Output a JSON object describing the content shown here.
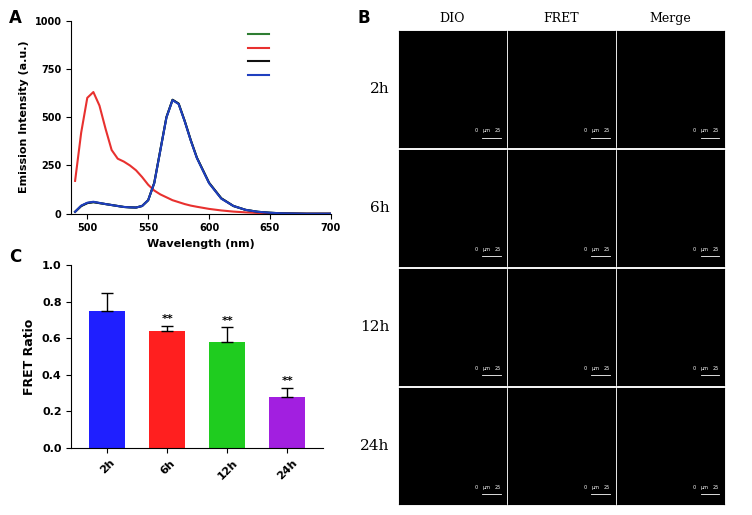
{
  "panel_labels": [
    "A",
    "B",
    "C"
  ],
  "chart_data": [
    {
      "type": "line",
      "x_label": "Wavelength (nm)",
      "y_label": "Emission Intensity (a.u.)",
      "x": [
        490,
        495,
        500,
        505,
        510,
        515,
        520,
        525,
        530,
        535,
        540,
        545,
        550,
        555,
        560,
        565,
        570,
        575,
        580,
        585,
        590,
        600,
        610,
        620,
        630,
        640,
        650,
        660,
        680,
        700
      ],
      "series": [
        {
          "color": "#2e7d32",
          "values": [
            10,
            40,
            55,
            60,
            55,
            50,
            45,
            40,
            35,
            33,
            32,
            40,
            70,
            160,
            330,
            500,
            590,
            570,
            480,
            380,
            290,
            160,
            80,
            40,
            20,
            10,
            5,
            2,
            0,
            0
          ]
        },
        {
          "color": "#e8312f",
          "values": [
            170,
            420,
            600,
            630,
            560,
            440,
            330,
            285,
            270,
            250,
            225,
            190,
            150,
            120,
            100,
            85,
            70,
            60,
            50,
            42,
            36,
            25,
            17,
            11,
            7,
            4,
            2,
            1,
            0,
            0
          ]
        },
        {
          "color": "#111111",
          "values": [
            10,
            40,
            55,
            60,
            55,
            50,
            45,
            40,
            35,
            33,
            32,
            40,
            70,
            160,
            330,
            500,
            590,
            570,
            480,
            380,
            290,
            160,
            80,
            40,
            20,
            10,
            5,
            2,
            0,
            0
          ]
        },
        {
          "color": "#1f3fbf",
          "values": [
            10,
            42,
            57,
            62,
            56,
            50,
            45,
            40,
            35,
            33,
            32,
            40,
            70,
            158,
            328,
            498,
            588,
            568,
            478,
            378,
            288,
            158,
            78,
            40,
            20,
            10,
            5,
            2,
            0,
            0
          ]
        }
      ],
      "xlim": [
        487,
        700
      ],
      "xticks": [
        500,
        550,
        600,
        650,
        700
      ],
      "ylim": [
        0,
        1000
      ],
      "yticks": [
        0,
        250,
        500,
        750,
        1000
      ]
    },
    {
      "type": "bar",
      "y_label": "FRET Ratio",
      "categories": [
        "2h",
        "6h",
        "12h",
        "24h"
      ],
      "values": [
        0.75,
        0.64,
        0.58,
        0.28
      ],
      "error": [
        0.1,
        0.03,
        0.08,
        0.05
      ],
      "annotations": [
        null,
        "**",
        "**",
        "**"
      ],
      "colors": [
        "#1f1fff",
        "#ff1f1f",
        "#1fcc1f",
        "#a21fe0"
      ],
      "ylim": [
        0.0,
        1.0
      ],
      "yticks": [
        0.0,
        0.2,
        0.4,
        0.6,
        0.8,
        1.0
      ]
    }
  ],
  "images": {
    "columns": [
      "DIO",
      "FRET",
      "Merge"
    ],
    "rows": [
      "2h",
      "6h",
      "12h",
      "24h"
    ],
    "scale_bar": [
      "0",
      "μm",
      "25"
    ]
  }
}
